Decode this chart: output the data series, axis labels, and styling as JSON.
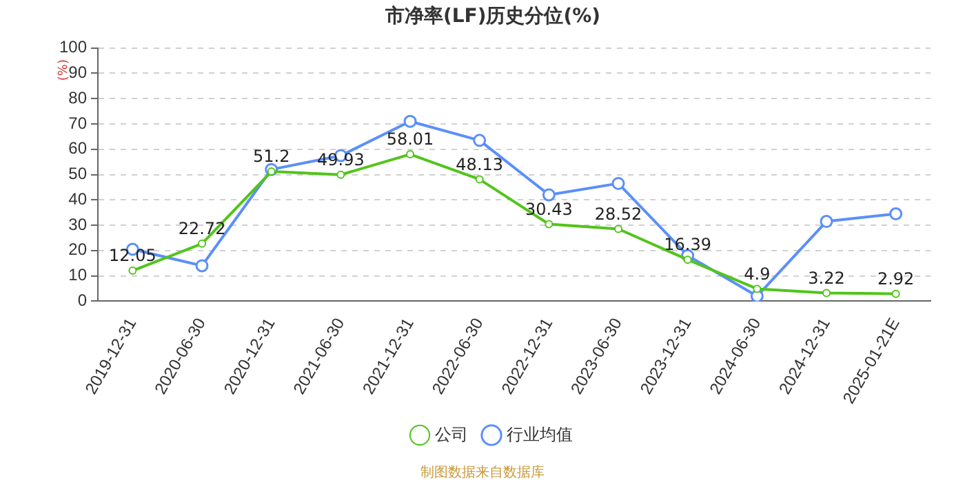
{
  "chart_data": {
    "type": "line",
    "title": "市净率(LF)历史分位(%)",
    "ylabel": "(%)",
    "categories": [
      "2019-12-31",
      "2020-06-30",
      "2020-12-31",
      "2021-06-30",
      "2021-12-31",
      "2022-06-30",
      "2022-12-31",
      "2023-06-30",
      "2023-12-31",
      "2024-06-30",
      "2024-12-31",
      "2025-01-21E"
    ],
    "series": [
      {
        "name": "公司",
        "color": "#52c41a",
        "values": [
          12.05,
          22.72,
          51.2,
          49.93,
          58.01,
          48.13,
          30.43,
          28.52,
          16.39,
          4.9,
          3.22,
          2.92
        ],
        "value_labels": [
          "12.05",
          "22.72",
          "51.2",
          "49.93",
          "58.01",
          "48.13",
          "30.43",
          "28.52",
          "16.39",
          "4.9",
          "3.22",
          "2.92"
        ]
      },
      {
        "name": "行业均值",
        "color": "#5b8ff9",
        "values": [
          20.5,
          14,
          52,
          57.5,
          71,
          63.5,
          42,
          46.5,
          18,
          2,
          31.5,
          34.5
        ]
      }
    ],
    "ylim": [
      0,
      100
    ],
    "yticks": [
      0,
      10,
      20,
      30,
      40,
      50,
      60,
      70,
      80,
      90,
      100
    ],
    "grid": "y",
    "legend": "bottom",
    "marker": "circle",
    "line_style": "solid",
    "annotations": [
      "制图数据来自数据库"
    ]
  }
}
